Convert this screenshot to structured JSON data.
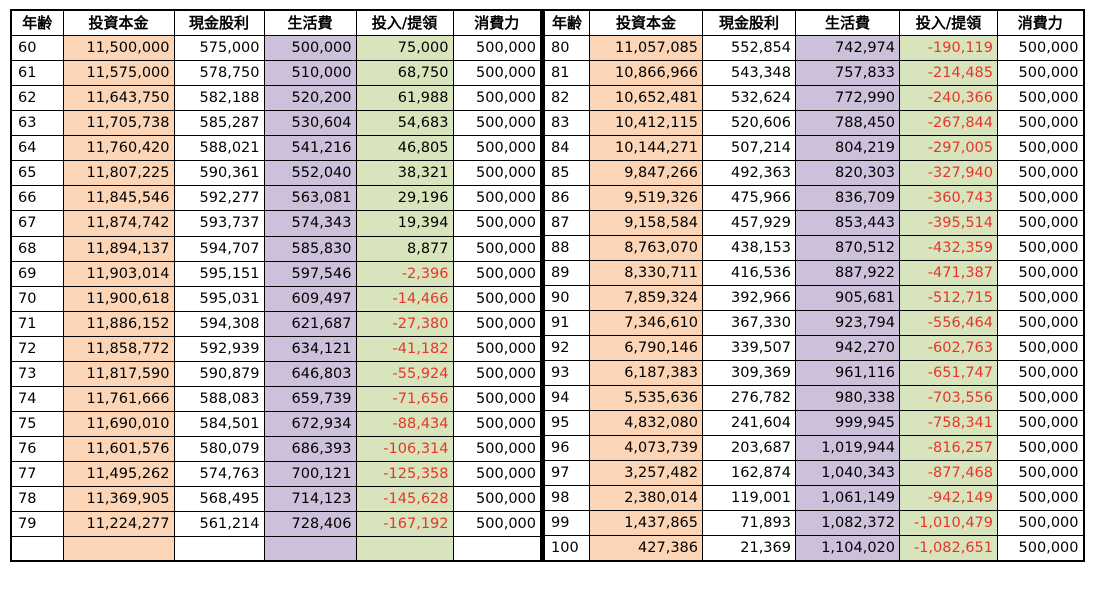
{
  "headers": [
    "年齢",
    "投資本金",
    "現金股利",
    "生活費",
    "投入/提領",
    "消費力"
  ],
  "left_rows": [
    [
      "60",
      "11,500,000",
      "575,000",
      "500,000",
      "75,000",
      "500,000"
    ],
    [
      "61",
      "11,575,000",
      "578,750",
      "510,000",
      "68,750",
      "500,000"
    ],
    [
      "62",
      "11,643,750",
      "582,188",
      "520,200",
      "61,988",
      "500,000"
    ],
    [
      "63",
      "11,705,738",
      "585,287",
      "530,604",
      "54,683",
      "500,000"
    ],
    [
      "64",
      "11,760,420",
      "588,021",
      "541,216",
      "46,805",
      "500,000"
    ],
    [
      "65",
      "11,807,225",
      "590,361",
      "552,040",
      "38,321",
      "500,000"
    ],
    [
      "66",
      "11,845,546",
      "592,277",
      "563,081",
      "29,196",
      "500,000"
    ],
    [
      "67",
      "11,874,742",
      "593,737",
      "574,343",
      "19,394",
      "500,000"
    ],
    [
      "68",
      "11,894,137",
      "594,707",
      "585,830",
      "8,877",
      "500,000"
    ],
    [
      "69",
      "11,903,014",
      "595,151",
      "597,546",
      "-2,396",
      "500,000"
    ],
    [
      "70",
      "11,900,618",
      "595,031",
      "609,497",
      "-14,466",
      "500,000"
    ],
    [
      "71",
      "11,886,152",
      "594,308",
      "621,687",
      "-27,380",
      "500,000"
    ],
    [
      "72",
      "11,858,772",
      "592,939",
      "634,121",
      "-41,182",
      "500,000"
    ],
    [
      "73",
      "11,817,590",
      "590,879",
      "646,803",
      "-55,924",
      "500,000"
    ],
    [
      "74",
      "11,761,666",
      "588,083",
      "659,739",
      "-71,656",
      "500,000"
    ],
    [
      "75",
      "11,690,010",
      "584,501",
      "672,934",
      "-88,434",
      "500,000"
    ],
    [
      "76",
      "11,601,576",
      "580,079",
      "686,393",
      "-106,314",
      "500,000"
    ],
    [
      "77",
      "11,495,262",
      "574,763",
      "700,121",
      "-125,358",
      "500,000"
    ],
    [
      "78",
      "11,369,905",
      "568,495",
      "714,123",
      "-145,628",
      "500,000"
    ],
    [
      "79",
      "11,224,277",
      "561,214",
      "728,406",
      "-167,192",
      "500,000"
    ],
    [
      "",
      "",
      "",
      "",
      "",
      ""
    ]
  ],
  "right_rows": [
    [
      "80",
      "11,057,085",
      "552,854",
      "742,974",
      "-190,119",
      "500,000"
    ],
    [
      "81",
      "10,866,966",
      "543,348",
      "757,833",
      "-214,485",
      "500,000"
    ],
    [
      "82",
      "10,652,481",
      "532,624",
      "772,990",
      "-240,366",
      "500,000"
    ],
    [
      "83",
      "10,412,115",
      "520,606",
      "788,450",
      "-267,844",
      "500,000"
    ],
    [
      "84",
      "10,144,271",
      "507,214",
      "804,219",
      "-297,005",
      "500,000"
    ],
    [
      "85",
      "9,847,266",
      "492,363",
      "820,303",
      "-327,940",
      "500,000"
    ],
    [
      "86",
      "9,519,326",
      "475,966",
      "836,709",
      "-360,743",
      "500,000"
    ],
    [
      "87",
      "9,158,584",
      "457,929",
      "853,443",
      "-395,514",
      "500,000"
    ],
    [
      "88",
      "8,763,070",
      "438,153",
      "870,512",
      "-432,359",
      "500,000"
    ],
    [
      "89",
      "8,330,711",
      "416,536",
      "887,922",
      "-471,387",
      "500,000"
    ],
    [
      "90",
      "7,859,324",
      "392,966",
      "905,681",
      "-512,715",
      "500,000"
    ],
    [
      "91",
      "7,346,610",
      "367,330",
      "923,794",
      "-556,464",
      "500,000"
    ],
    [
      "92",
      "6,790,146",
      "339,507",
      "942,270",
      "-602,763",
      "500,000"
    ],
    [
      "93",
      "6,187,383",
      "309,369",
      "961,116",
      "-651,747",
      "500,000"
    ],
    [
      "94",
      "5,535,636",
      "276,782",
      "980,338",
      "-703,556",
      "500,000"
    ],
    [
      "95",
      "4,832,080",
      "241,604",
      "999,945",
      "-758,341",
      "500,000"
    ],
    [
      "96",
      "4,073,739",
      "203,687",
      "1,019,944",
      "-816,257",
      "500,000"
    ],
    [
      "97",
      "3,257,482",
      "162,874",
      "1,040,343",
      "-877,468",
      "500,000"
    ],
    [
      "98",
      "2,380,014",
      "119,001",
      "1,061,149",
      "-942,149",
      "500,000"
    ],
    [
      "99",
      "1,437,865",
      "71,893",
      "1,082,372",
      "-1,010,479",
      "500,000"
    ],
    [
      "100",
      "427,386",
      "21,369",
      "1,104,020",
      "-1,082,651",
      "500,000"
    ]
  ],
  "colors": {
    "principal": "#fbd5b5",
    "living_cost": "#ccc0da",
    "invest_withdraw": "#d8e4bc",
    "negative_text": "#e8352b"
  }
}
